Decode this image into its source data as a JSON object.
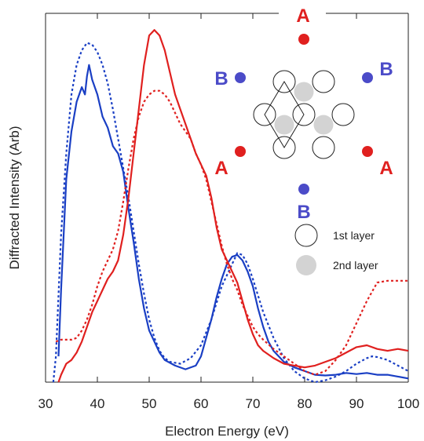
{
  "chart_data": {
    "type": "line",
    "title": "",
    "xlabel": "Electron Energy (eV)",
    "ylabel": "Diffracted Intensity (Arb)",
    "xlim": [
      30,
      100
    ],
    "ylim": [
      0,
      1
    ],
    "xticks": [
      30,
      40,
      50,
      60,
      70,
      80,
      90,
      100
    ],
    "grid": false,
    "series": [
      {
        "color": "#1a3fc4",
        "style": "solid",
        "points": [
          [
            32.5,
            0.07
          ],
          [
            33,
            0.25
          ],
          [
            34,
            0.55
          ],
          [
            35,
            0.68
          ],
          [
            36,
            0.76
          ],
          [
            37,
            0.8
          ],
          [
            37.6,
            0.78
          ],
          [
            38,
            0.83
          ],
          [
            38.4,
            0.86
          ],
          [
            39,
            0.82
          ],
          [
            40,
            0.78
          ],
          [
            41,
            0.72
          ],
          [
            42,
            0.69
          ],
          [
            43,
            0.64
          ],
          [
            44,
            0.62
          ],
          [
            45,
            0.57
          ],
          [
            46,
            0.47
          ],
          [
            47,
            0.38
          ],
          [
            48,
            0.28
          ],
          [
            49,
            0.2
          ],
          [
            50,
            0.14
          ],
          [
            51,
            0.11
          ],
          [
            52,
            0.08
          ],
          [
            53,
            0.06
          ],
          [
            55,
            0.045
          ],
          [
            57,
            0.035
          ],
          [
            59,
            0.045
          ],
          [
            60,
            0.07
          ],
          [
            61,
            0.12
          ],
          [
            62,
            0.17
          ],
          [
            63,
            0.23
          ],
          [
            64,
            0.28
          ],
          [
            65,
            0.32
          ],
          [
            66,
            0.34
          ],
          [
            67,
            0.345
          ],
          [
            68,
            0.33
          ],
          [
            69,
            0.3
          ],
          [
            70,
            0.26
          ],
          [
            71,
            0.2
          ],
          [
            72,
            0.15
          ],
          [
            73,
            0.11
          ],
          [
            74,
            0.085
          ],
          [
            76,
            0.055
          ],
          [
            78,
            0.04
          ],
          [
            80,
            0.03
          ],
          [
            82,
            0.02
          ],
          [
            84,
            0.018
          ],
          [
            86,
            0.02
          ],
          [
            88,
            0.025
          ],
          [
            90,
            0.022
          ],
          [
            92,
            0.025
          ],
          [
            94,
            0.02
          ],
          [
            96,
            0.02
          ],
          [
            98,
            0.015
          ],
          [
            100,
            0.01
          ]
        ]
      },
      {
        "color": "#1a3fc4",
        "style": "dotted",
        "points": [
          [
            31.5,
            0.0
          ],
          [
            32,
            0.07
          ],
          [
            33,
            0.4
          ],
          [
            34,
            0.62
          ],
          [
            35,
            0.78
          ],
          [
            36,
            0.86
          ],
          [
            37,
            0.9
          ],
          [
            38,
            0.92
          ],
          [
            39,
            0.915
          ],
          [
            40,
            0.895
          ],
          [
            41,
            0.86
          ],
          [
            42,
            0.81
          ],
          [
            43,
            0.74
          ],
          [
            44,
            0.66
          ],
          [
            45,
            0.58
          ],
          [
            46,
            0.5
          ],
          [
            47,
            0.41
          ],
          [
            48,
            0.32
          ],
          [
            49,
            0.24
          ],
          [
            50,
            0.17
          ],
          [
            51,
            0.12
          ],
          [
            52,
            0.085
          ],
          [
            53,
            0.065
          ],
          [
            54,
            0.055
          ],
          [
            56,
            0.05
          ],
          [
            58,
            0.065
          ],
          [
            60,
            0.1
          ],
          [
            62,
            0.17
          ],
          [
            64,
            0.26
          ],
          [
            66,
            0.32
          ],
          [
            67,
            0.35
          ],
          [
            68,
            0.345
          ],
          [
            69,
            0.32
          ],
          [
            70,
            0.28
          ],
          [
            72,
            0.19
          ],
          [
            74,
            0.12
          ],
          [
            76,
            0.065
          ],
          [
            78,
            0.03
          ],
          [
            80,
            0.01
          ],
          [
            82,
            0.0
          ],
          [
            84,
            0.005
          ],
          [
            86,
            0.015
          ],
          [
            88,
            0.03
          ],
          [
            90,
            0.05
          ],
          [
            92,
            0.065
          ],
          [
            93,
            0.07
          ],
          [
            94,
            0.068
          ],
          [
            96,
            0.06
          ],
          [
            98,
            0.045
          ],
          [
            100,
            0.03
          ]
        ]
      },
      {
        "color": "#e0201f",
        "style": "solid",
        "points": [
          [
            32.5,
            0.0
          ],
          [
            33,
            0.02
          ],
          [
            34,
            0.05
          ],
          [
            35,
            0.06
          ],
          [
            36,
            0.08
          ],
          [
            37,
            0.11
          ],
          [
            38,
            0.15
          ],
          [
            39,
            0.19
          ],
          [
            40,
            0.22
          ],
          [
            41,
            0.25
          ],
          [
            42,
            0.28
          ],
          [
            43,
            0.3
          ],
          [
            44,
            0.33
          ],
          [
            45,
            0.4
          ],
          [
            46,
            0.5
          ],
          [
            47,
            0.62
          ],
          [
            48,
            0.74
          ],
          [
            49,
            0.86
          ],
          [
            50,
            0.94
          ],
          [
            51,
            0.955
          ],
          [
            52,
            0.94
          ],
          [
            53,
            0.9
          ],
          [
            54,
            0.84
          ],
          [
            55,
            0.78
          ],
          [
            56,
            0.74
          ],
          [
            57,
            0.7
          ],
          [
            58,
            0.66
          ],
          [
            59,
            0.62
          ],
          [
            60,
            0.59
          ],
          [
            61,
            0.56
          ],
          [
            62,
            0.5
          ],
          [
            63,
            0.42
          ],
          [
            64,
            0.36
          ],
          [
            65,
            0.33
          ],
          [
            66,
            0.3
          ],
          [
            67,
            0.27
          ],
          [
            68,
            0.22
          ],
          [
            69,
            0.17
          ],
          [
            70,
            0.13
          ],
          [
            71,
            0.1
          ],
          [
            72,
            0.085
          ],
          [
            74,
            0.065
          ],
          [
            76,
            0.05
          ],
          [
            78,
            0.045
          ],
          [
            80,
            0.04
          ],
          [
            82,
            0.045
          ],
          [
            84,
            0.055
          ],
          [
            86,
            0.065
          ],
          [
            88,
            0.08
          ],
          [
            90,
            0.095
          ],
          [
            92,
            0.1
          ],
          [
            94,
            0.09
          ],
          [
            96,
            0.085
          ],
          [
            98,
            0.09
          ],
          [
            100,
            0.085
          ]
        ]
      },
      {
        "color": "#e0201f",
        "style": "dotted",
        "points": [
          [
            32,
            0.11
          ],
          [
            33,
            0.115
          ],
          [
            34,
            0.115
          ],
          [
            35,
            0.115
          ],
          [
            36,
            0.12
          ],
          [
            37,
            0.14
          ],
          [
            38,
            0.17
          ],
          [
            39,
            0.21
          ],
          [
            40,
            0.26
          ],
          [
            41,
            0.3
          ],
          [
            42,
            0.33
          ],
          [
            43,
            0.36
          ],
          [
            44,
            0.41
          ],
          [
            45,
            0.49
          ],
          [
            46,
            0.58
          ],
          [
            47,
            0.66
          ],
          [
            48,
            0.72
          ],
          [
            49,
            0.76
          ],
          [
            50,
            0.78
          ],
          [
            51,
            0.79
          ],
          [
            52,
            0.79
          ],
          [
            53,
            0.78
          ],
          [
            54,
            0.76
          ],
          [
            55,
            0.73
          ],
          [
            56,
            0.7
          ],
          [
            57,
            0.68
          ],
          [
            58,
            0.66
          ],
          [
            59,
            0.62
          ],
          [
            60,
            0.59
          ],
          [
            61,
            0.55
          ],
          [
            62,
            0.49
          ],
          [
            63,
            0.43
          ],
          [
            64,
            0.37
          ],
          [
            65,
            0.32
          ],
          [
            66,
            0.28
          ],
          [
            67,
            0.25
          ],
          [
            68,
            0.21
          ],
          [
            69,
            0.18
          ],
          [
            70,
            0.15
          ],
          [
            71,
            0.13
          ],
          [
            72,
            0.115
          ],
          [
            74,
            0.09
          ],
          [
            76,
            0.07
          ],
          [
            78,
            0.05
          ],
          [
            80,
            0.03
          ],
          [
            82,
            0.02
          ],
          [
            84,
            0.03
          ],
          [
            86,
            0.06
          ],
          [
            88,
            0.1
          ],
          [
            90,
            0.16
          ],
          [
            92,
            0.22
          ],
          [
            94,
            0.27
          ],
          [
            96,
            0.275
          ],
          [
            98,
            0.275
          ],
          [
            100,
            0.275
          ]
        ]
      }
    ]
  },
  "inset": {
    "labels": [
      {
        "text": "A",
        "color": "#e0201f"
      },
      {
        "text": "B",
        "color": "#4b4bc8"
      },
      {
        "text": "B",
        "color": "#4b4bc8"
      },
      {
        "text": "A",
        "color": "#e0201f"
      },
      {
        "text": "A",
        "color": "#e0201f"
      },
      {
        "text": "B",
        "color": "#4b4bc8"
      }
    ],
    "legend": [
      {
        "text": "1st layer",
        "marker": "open-circle"
      },
      {
        "text": "2nd layer",
        "marker": "filled-gray-circle"
      }
    ]
  }
}
